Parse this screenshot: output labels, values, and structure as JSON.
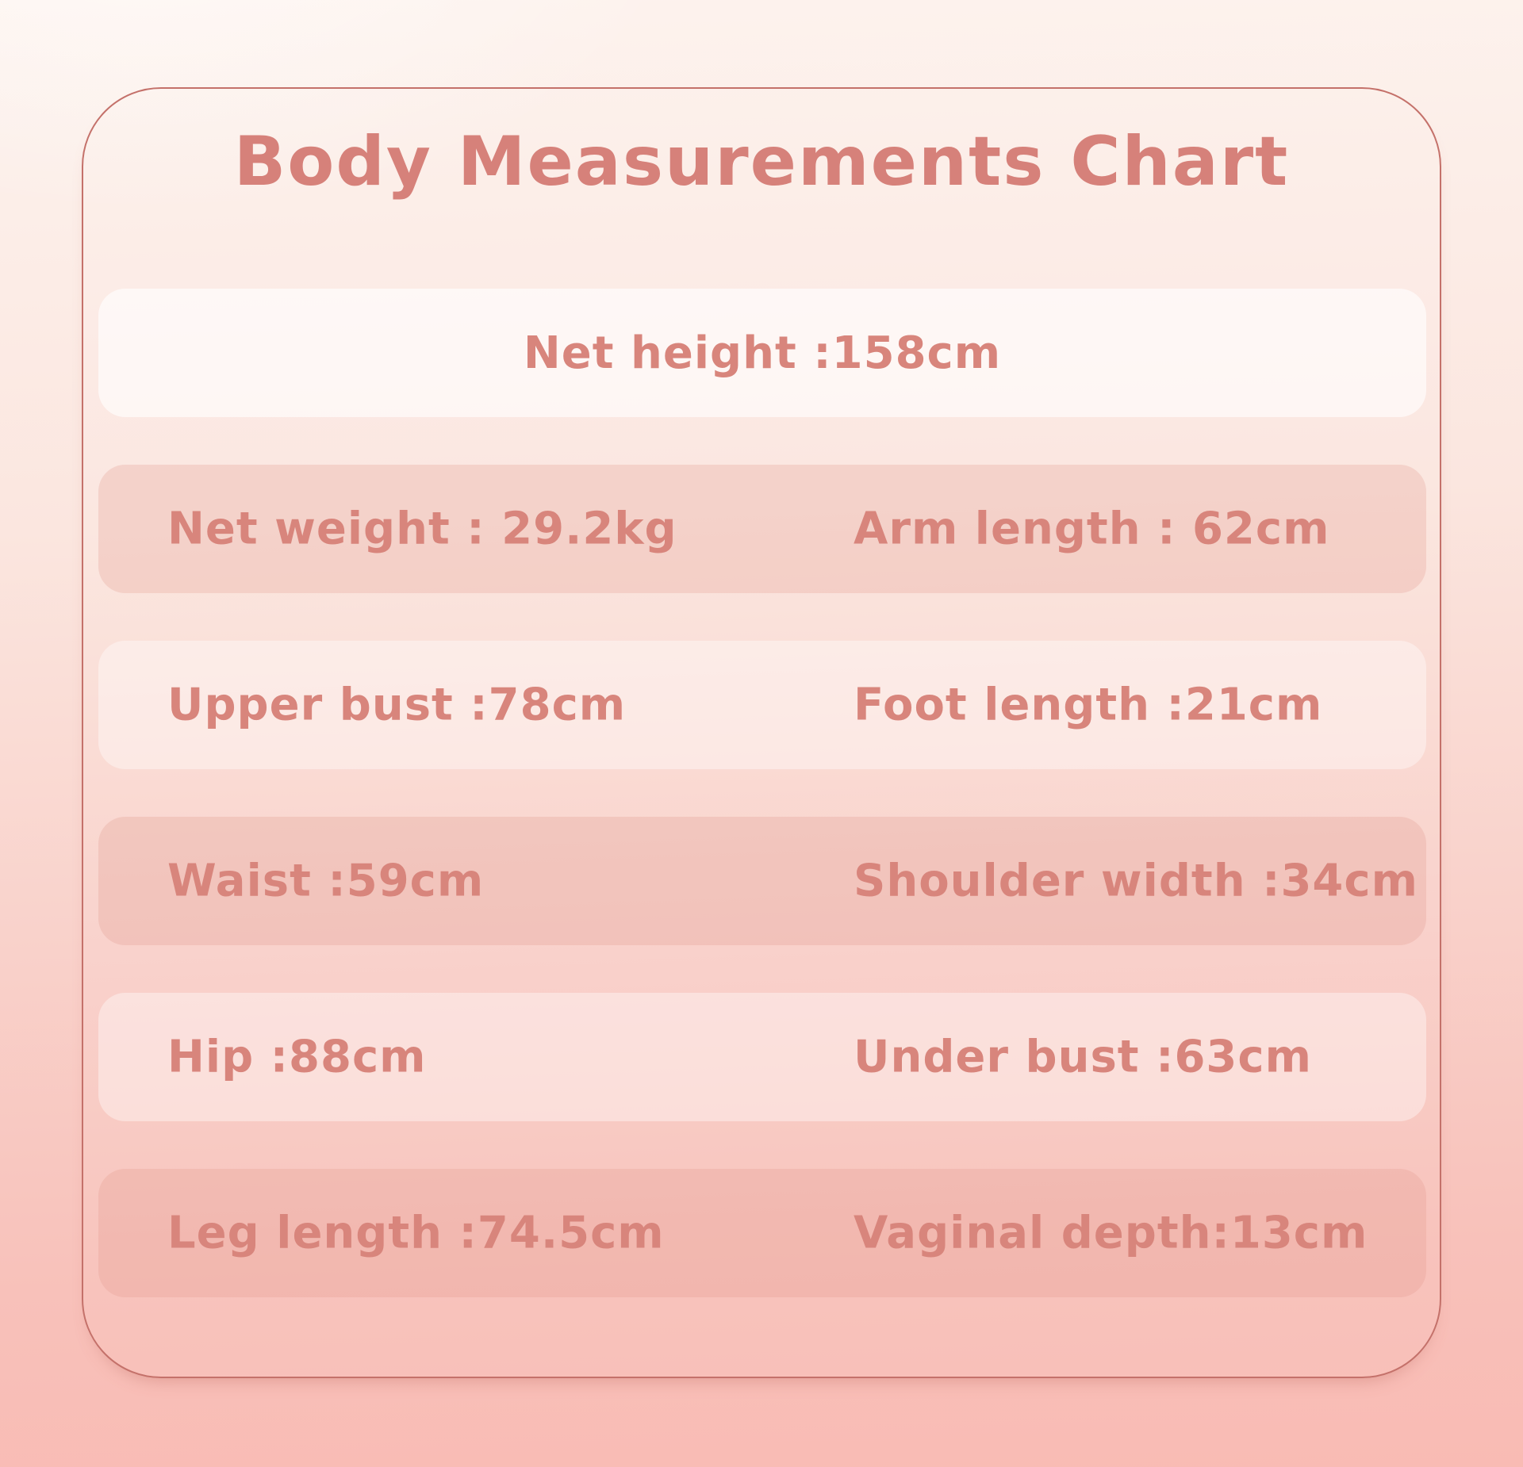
{
  "title": "Body Measurements Chart",
  "rows": [
    {
      "variant": "white",
      "center": "Net height :158cm"
    },
    {
      "variant": "dark",
      "left": "Net weight : 29.2kg",
      "right": "Arm length : 62cm"
    },
    {
      "variant": "light",
      "left": "Upper bust :78cm",
      "right": "Foot length :21cm"
    },
    {
      "variant": "dark",
      "left": "Waist :59cm",
      "right": "Shoulder width :34cm"
    },
    {
      "variant": "light",
      "left": "Hip :88cm",
      "right": "Under bust :63cm"
    },
    {
      "variant": "dark",
      "left": "Leg length :74.5cm",
      "right": "Vaginal depth:13cm"
    }
  ],
  "colors": {
    "text_accent": "#d8857c",
    "title_accent": "#d6817a",
    "card_border": "#c4716a",
    "background_top": "#fdf3ee",
    "background_bottom": "#f9bbb4",
    "row_dark_overlay": "rgba(224,146,136,0.25)",
    "row_light_overlay": "rgba(255,255,255,0.38)",
    "row_white_overlay": "rgba(255,255,255,0.62)"
  },
  "chart_data": {
    "type": "table",
    "title": "Body Measurements Chart",
    "measurements": [
      {
        "label": "Net height",
        "value": "158cm"
      },
      {
        "label": "Net weight",
        "value": "29.2kg"
      },
      {
        "label": "Arm length",
        "value": "62cm"
      },
      {
        "label": "Upper bust",
        "value": "78cm"
      },
      {
        "label": "Foot length",
        "value": "21cm"
      },
      {
        "label": "Waist",
        "value": "59cm"
      },
      {
        "label": "Shoulder width",
        "value": "34cm"
      },
      {
        "label": "Hip",
        "value": "88cm"
      },
      {
        "label": "Under bust",
        "value": "63cm"
      },
      {
        "label": "Leg length",
        "value": "74.5cm"
      },
      {
        "label": "Vaginal depth",
        "value": "13cm"
      }
    ]
  }
}
